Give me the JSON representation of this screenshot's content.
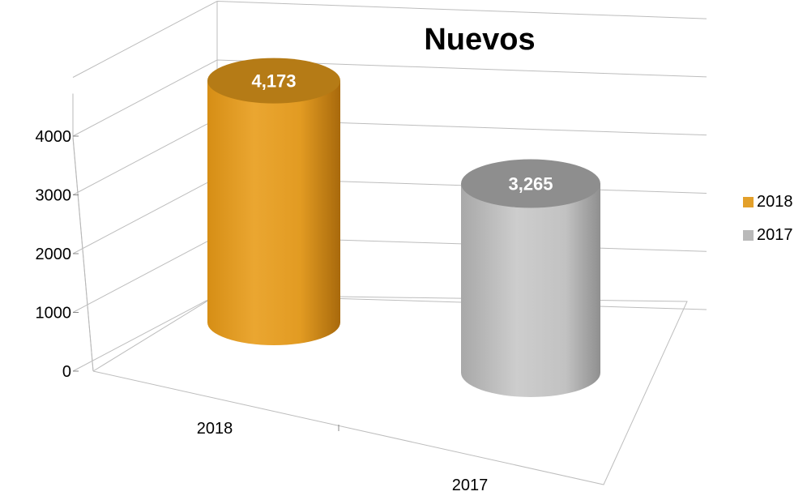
{
  "chart_data": {
    "type": "bar",
    "style": "3d-cylinder",
    "title": "Nuevos",
    "categories": [
      "2018",
      "2017"
    ],
    "series": [
      {
        "name": "2018",
        "values": [
          4173,
          null
        ],
        "color": "#E3A02A"
      },
      {
        "name": "2017",
        "values": [
          null,
          3265
        ],
        "color": "#B9B9B9"
      }
    ],
    "data_labels": [
      "4,173",
      "3,265"
    ],
    "yticks": [
      "0",
      "1000",
      "2000",
      "3000",
      "4000"
    ],
    "ylim": [
      0,
      5000
    ],
    "grid": true,
    "legend": "right",
    "xlabel": "",
    "ylabel": ""
  }
}
